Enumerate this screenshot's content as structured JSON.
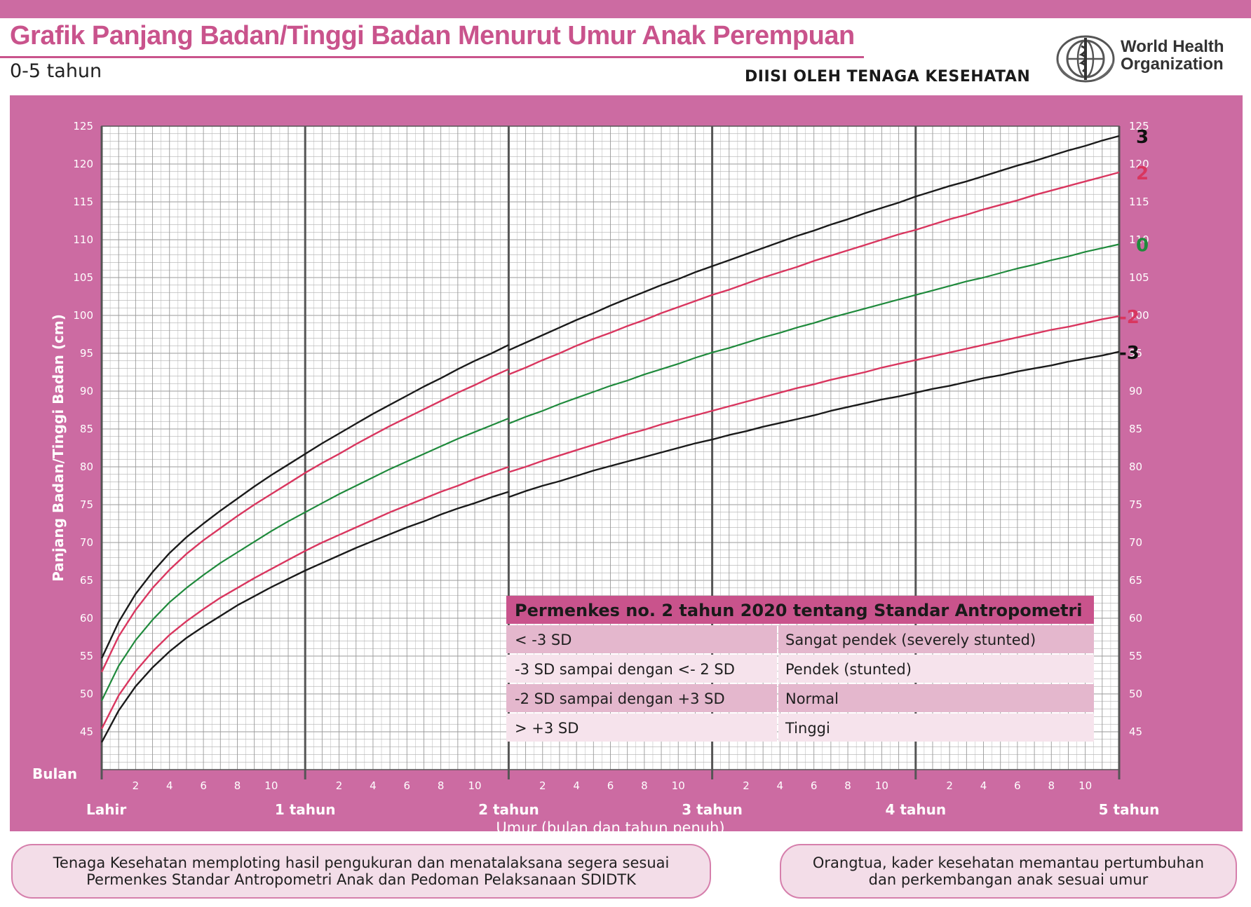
{
  "header": {
    "title": "Grafik Panjang Badan/Tinggi Badan Menurut Umur Anak Perempuan",
    "age_range": "0-5 tahun",
    "filled_by": "DIISI OLEH TENAGA KESEHATAN",
    "org_line1": "World Health",
    "org_line2": "Organization"
  },
  "colors": {
    "frame": "#cc6ba2",
    "grid_line": "#9a9a9a",
    "sd3": "#1a1a1a",
    "sd2": "#d9365f",
    "median": "#1f8a3c",
    "label_sd2": "#d9365f",
    "label_median": "#1f8a3c"
  },
  "chart_data": {
    "type": "line",
    "title": "Grafik Panjang Badan/Tinggi Badan Menurut Umur Anak Perempuan",
    "ylabel": "Panjang Badan/Tinggi Badan (cm)",
    "xlabel": "Umur (bulan dan tahun penuh)",
    "x_unit_label": "Bulan",
    "xlim": [
      0,
      60
    ],
    "ylim": [
      40,
      125
    ],
    "y_ticks": [
      45,
      50,
      55,
      60,
      65,
      70,
      75,
      80,
      85,
      90,
      95,
      100,
      105,
      110,
      115,
      120,
      125
    ],
    "month_tick_labels": [
      "2",
      "4",
      "6",
      "8",
      "10"
    ],
    "year_labels": [
      {
        "month": 0,
        "label": "Lahir"
      },
      {
        "month": 12,
        "label": "1 tahun"
      },
      {
        "month": 24,
        "label": "2 tahun"
      },
      {
        "month": 36,
        "label": "3 tahun"
      },
      {
        "month": 48,
        "label": "4 tahun"
      },
      {
        "month": 60,
        "label": "5 tahun"
      }
    ],
    "grid": true,
    "x": [
      0,
      1,
      2,
      3,
      4,
      5,
      6,
      7,
      8,
      9,
      10,
      11,
      12,
      13,
      14,
      15,
      16,
      17,
      18,
      19,
      20,
      21,
      22,
      23,
      24,
      25,
      26,
      27,
      28,
      29,
      30,
      31,
      32,
      33,
      34,
      35,
      36,
      37,
      38,
      39,
      40,
      41,
      42,
      43,
      44,
      45,
      46,
      47,
      48,
      49,
      50,
      51,
      52,
      53,
      54,
      55,
      56,
      57,
      58,
      59,
      60
    ],
    "series": [
      {
        "name": "3",
        "color_key": "sd3",
        "lying": [
          54.7,
          59.5,
          63.2,
          66.1,
          68.6,
          70.7,
          72.5,
          74.2,
          75.8,
          77.4,
          78.9,
          80.3,
          81.7,
          83.1,
          84.4,
          85.7,
          87.0,
          88.2,
          89.4,
          90.6,
          91.7,
          92.9,
          94.0,
          95.0,
          96.1
        ],
        "standing": [
          95.4,
          96.4,
          97.4,
          98.4,
          99.4,
          100.3,
          101.3,
          102.2,
          103.1,
          104.0,
          104.8,
          105.7,
          106.5,
          107.3,
          108.1,
          108.9,
          109.7,
          110.5,
          111.2,
          112.0,
          112.7,
          113.5,
          114.2,
          114.9,
          115.7,
          116.4,
          117.1,
          117.7,
          118.4,
          119.1,
          119.8,
          120.4,
          121.1,
          121.8,
          122.4,
          123.1,
          123.7
        ]
      },
      {
        "name": "2",
        "color_key": "sd2",
        "lying": [
          52.9,
          57.6,
          61.1,
          64.0,
          66.4,
          68.5,
          70.3,
          71.9,
          73.5,
          75.0,
          76.4,
          77.8,
          79.2,
          80.5,
          81.7,
          83.0,
          84.2,
          85.4,
          86.5,
          87.6,
          88.7,
          89.8,
          90.8,
          91.9,
          92.9
        ],
        "standing": [
          92.2,
          93.1,
          94.1,
          95.0,
          96.0,
          96.9,
          97.7,
          98.6,
          99.4,
          100.3,
          101.1,
          101.9,
          102.7,
          103.4,
          104.2,
          105.0,
          105.7,
          106.4,
          107.2,
          107.9,
          108.6,
          109.3,
          110.0,
          110.7,
          111.3,
          112.0,
          112.7,
          113.3,
          114.0,
          114.6,
          115.2,
          115.9,
          116.5,
          117.1,
          117.7,
          118.3,
          118.9
        ]
      },
      {
        "name": "0",
        "color_key": "median",
        "lying": [
          49.1,
          53.7,
          57.1,
          59.8,
          62.1,
          64.0,
          65.7,
          67.3,
          68.7,
          70.1,
          71.5,
          72.8,
          74.0,
          75.2,
          76.4,
          77.5,
          78.6,
          79.7,
          80.7,
          81.7,
          82.7,
          83.7,
          84.6,
          85.5,
          86.4
        ],
        "standing": [
          85.7,
          86.6,
          87.4,
          88.3,
          89.1,
          89.9,
          90.7,
          91.4,
          92.2,
          92.9,
          93.6,
          94.4,
          95.1,
          95.7,
          96.4,
          97.1,
          97.7,
          98.4,
          99.0,
          99.7,
          100.3,
          100.9,
          101.5,
          102.1,
          102.7,
          103.3,
          103.9,
          104.5,
          105.0,
          105.6,
          106.2,
          106.7,
          107.3,
          107.8,
          108.4,
          108.9,
          109.4
        ]
      },
      {
        "name": "-2",
        "color_key": "sd2",
        "lying": [
          45.4,
          49.8,
          53.0,
          55.6,
          57.8,
          59.6,
          61.2,
          62.7,
          64.0,
          65.3,
          66.5,
          67.7,
          68.9,
          70.0,
          71.0,
          72.0,
          73.0,
          74.0,
          74.9,
          75.8,
          76.7,
          77.5,
          78.4,
          79.2,
          80.0
        ],
        "standing": [
          79.3,
          80.0,
          80.8,
          81.5,
          82.2,
          82.9,
          83.6,
          84.3,
          84.9,
          85.6,
          86.2,
          86.8,
          87.4,
          88.0,
          88.6,
          89.2,
          89.8,
          90.4,
          90.9,
          91.5,
          92.0,
          92.5,
          93.1,
          93.6,
          94.1,
          94.6,
          95.1,
          95.6,
          96.1,
          96.6,
          97.1,
          97.6,
          98.1,
          98.5,
          99.0,
          99.5,
          99.9
        ]
      },
      {
        "name": "-3",
        "color_key": "sd3",
        "lying": [
          43.6,
          47.8,
          51.0,
          53.5,
          55.6,
          57.4,
          58.9,
          60.3,
          61.7,
          62.9,
          64.1,
          65.2,
          66.3,
          67.3,
          68.3,
          69.3,
          70.2,
          71.1,
          72.0,
          72.8,
          73.7,
          74.5,
          75.2,
          76.0,
          76.7
        ],
        "standing": [
          76.0,
          76.8,
          77.5,
          78.1,
          78.8,
          79.5,
          80.1,
          80.7,
          81.3,
          81.9,
          82.5,
          83.1,
          83.6,
          84.2,
          84.7,
          85.3,
          85.8,
          86.3,
          86.8,
          87.4,
          87.9,
          88.4,
          88.9,
          89.3,
          89.8,
          90.3,
          90.7,
          91.2,
          91.7,
          92.1,
          92.6,
          93.0,
          93.4,
          93.9,
          94.3,
          94.7,
          95.2
        ]
      }
    ]
  },
  "classification_table": {
    "title": "Permenkes no. 2 tahun 2020 tentang Standar Antropometri",
    "rows": [
      {
        "range": "< -3 SD",
        "category": "Sangat pendek (severely stunted)"
      },
      {
        "range": "-3 SD sampai dengan <- 2 SD",
        "category": "Pendek (stunted)"
      },
      {
        "range": "-2 SD sampai dengan +3 SD",
        "category": "Normal"
      },
      {
        "range": "> +3 SD",
        "category": "Tinggi"
      }
    ]
  },
  "footer": {
    "left_line1": "Tenaga Kesehatan memploting hasil pengukuran dan menatalaksana segera sesuai",
    "left_line2": "Permenkes Standar Antropometri Anak dan Pedoman Pelaksanaan SDIDTK",
    "right_line1": "Orangtua, kader kesehatan memantau pertumbuhan",
    "right_line2": "dan perkembangan anak sesuai umur"
  }
}
